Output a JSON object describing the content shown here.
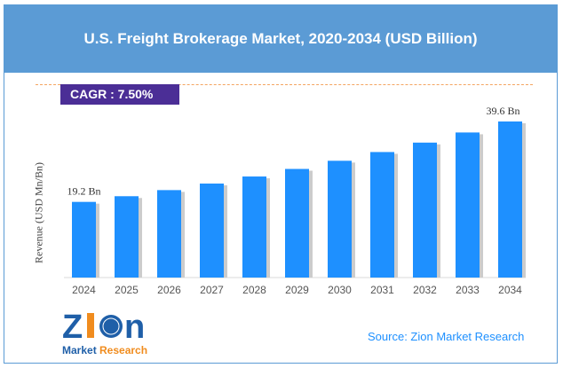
{
  "chart_data": {
    "type": "bar",
    "title": "U.S. Freight Brokerage Market, 2020-2034 (USD Billion)",
    "ylabel": "Revenue (USD Mn/Bn)",
    "xlabel": "",
    "categories": [
      "2024",
      "2025",
      "2026",
      "2027",
      "2028",
      "2029",
      "2030",
      "2031",
      "2032",
      "2033",
      "2034"
    ],
    "values": [
      19.2,
      20.64,
      22.19,
      23.85,
      25.64,
      27.56,
      29.63,
      31.85,
      34.24,
      36.81,
      39.6
    ],
    "data_labels": {
      "first": "19.2 Bn",
      "last": "39.6 Bn"
    },
    "ylim": [
      0,
      40
    ],
    "grid": false,
    "bar_color": "#1e90ff"
  },
  "cagr": "CAGR : 7.50%",
  "source": "Source: Zion Market Research",
  "logo": {
    "name": "Zion",
    "sub": "Market Research"
  }
}
